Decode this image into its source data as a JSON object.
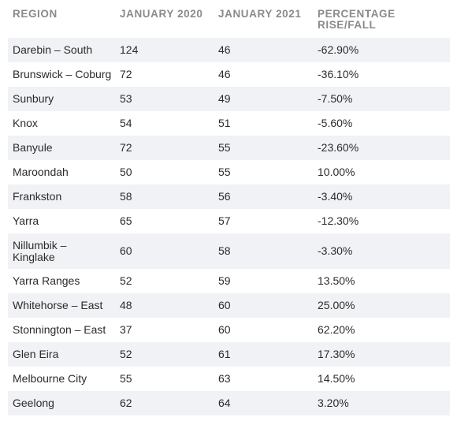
{
  "table": {
    "headers": {
      "region": "REGION",
      "jan2020": "JANUARY 2020",
      "jan2021": "JANUARY 2021",
      "change_line1": "PERCENTAGE",
      "change_line2": "RISE/FALL"
    },
    "rows": [
      {
        "region": "Darebin – South",
        "jan2020": "124",
        "jan2021": "46",
        "change": "-62.90%"
      },
      {
        "region": "Brunswick – Coburg",
        "jan2020": "72",
        "jan2021": "46",
        "change": "-36.10%"
      },
      {
        "region": "Sunbury",
        "jan2020": "53",
        "jan2021": "49",
        "change": "-7.50%"
      },
      {
        "region": "Knox",
        "jan2020": "54",
        "jan2021": "51",
        "change": "-5.60%"
      },
      {
        "region": "Banyule",
        "jan2020": "72",
        "jan2021": "55",
        "change": "-23.60%"
      },
      {
        "region": "Maroondah",
        "jan2020": "50",
        "jan2021": "55",
        "change": "10.00%"
      },
      {
        "region": "Frankston",
        "jan2020": "58",
        "jan2021": "56",
        "change": "-3.40%"
      },
      {
        "region": "Yarra",
        "jan2020": "65",
        "jan2021": "57",
        "change": "-12.30%"
      },
      {
        "region_line1": "Nillumbik –",
        "region_line2": "Kinglake",
        "jan2020": "60",
        "jan2021": "58",
        "change": "-3.30%"
      },
      {
        "region": "Yarra Ranges",
        "jan2020": "52",
        "jan2021": "59",
        "change": "13.50%"
      },
      {
        "region": "Whitehorse – East",
        "jan2020": "48",
        "jan2021": "60",
        "change": "25.00%"
      },
      {
        "region": "Stonnington – East",
        "jan2020": "37",
        "jan2021": "60",
        "change": "62.20%"
      },
      {
        "region": "Glen Eira",
        "jan2020": "52",
        "jan2021": "61",
        "change": "17.30%"
      },
      {
        "region": "Melbourne City",
        "jan2020": "55",
        "jan2021": "63",
        "change": "14.50%"
      },
      {
        "region": "Geelong",
        "jan2020": "62",
        "jan2021": "64",
        "change": "3.20%"
      }
    ]
  },
  "colors": {
    "header_text": "#8a8a8a",
    "row_shade": "#f0f2f5",
    "body_text": "#2b2b2b"
  }
}
